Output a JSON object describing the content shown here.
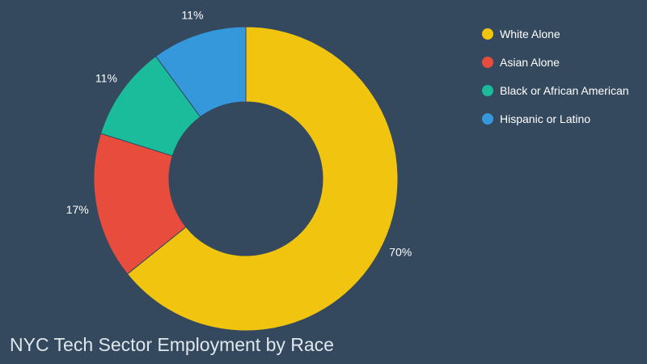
{
  "chart_data": {
    "type": "pie",
    "title": "NYC Tech Sector Employment by Race",
    "legend_position": "top-right",
    "donut": true,
    "categories": [
      "White Alone",
      "Asian Alone",
      "Black or African American",
      "Hispanic or Latino"
    ],
    "values": [
      70,
      17,
      11,
      11
    ],
    "labels": [
      "70%",
      "17%",
      "11%",
      "11%"
    ],
    "colors": [
      "#f1c40f",
      "#e74c3c",
      "#1abc9c",
      "#3498db"
    ]
  }
}
